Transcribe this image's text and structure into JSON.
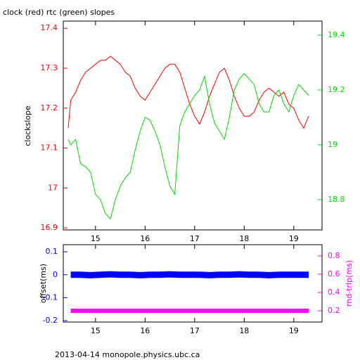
{
  "chart_data": [
    {
      "type": "line",
      "title": "clock (red) rtc (green) slopes",
      "y_label": "clockslope",
      "x": [
        14.45,
        14.5,
        14.6,
        14.7,
        14.8,
        14.9,
        15.0,
        15.1,
        15.2,
        15.3,
        15.4,
        15.5,
        15.6,
        15.7,
        15.8,
        15.9,
        16.0,
        16.1,
        16.2,
        16.3,
        16.4,
        16.5,
        16.6,
        16.7,
        16.8,
        16.9,
        17.0,
        17.1,
        17.2,
        17.3,
        17.4,
        17.5,
        17.6,
        17.7,
        17.8,
        17.9,
        18.0,
        18.1,
        18.2,
        18.3,
        18.4,
        18.5,
        18.6,
        18.7,
        18.8,
        18.9,
        19.0,
        19.1,
        19.2,
        19.3
      ],
      "series": [
        {
          "color": "#ff0000",
          "values": [
            17.15,
            17.22,
            17.24,
            17.27,
            17.29,
            17.3,
            17.31,
            17.32,
            17.32,
            17.33,
            17.32,
            17.31,
            17.29,
            17.28,
            17.25,
            17.23,
            17.22,
            17.24,
            17.26,
            17.28,
            17.3,
            17.31,
            17.31,
            17.29,
            17.25,
            17.21,
            17.18,
            17.16,
            17.19,
            17.23,
            17.26,
            17.29,
            17.3,
            17.27,
            17.23,
            17.2,
            17.18,
            17.18,
            17.19,
            17.22,
            17.24,
            17.25,
            17.24,
            17.23,
            17.24,
            17.21,
            17.2,
            17.17,
            17.15,
            17.18
          ]
        },
        {
          "color": "#00dd00",
          "axis": "y2",
          "values": [
            19.02,
            19.0,
            19.02,
            18.93,
            18.92,
            18.9,
            18.82,
            18.8,
            18.75,
            18.73,
            18.8,
            18.85,
            18.88,
            18.9,
            18.98,
            19.05,
            19.1,
            19.09,
            19.05,
            19.0,
            18.92,
            18.85,
            18.82,
            19.07,
            19.12,
            19.15,
            19.18,
            19.2,
            19.25,
            19.15,
            19.08,
            19.05,
            19.02,
            19.1,
            19.2,
            19.24,
            19.26,
            19.24,
            19.22,
            19.15,
            19.12,
            19.12,
            19.18,
            19.2,
            19.15,
            19.12,
            19.18,
            19.22,
            19.2,
            19.18
          ]
        }
      ],
      "xlim": [
        14.35,
        19.57
      ],
      "xticks": [
        15,
        16,
        17,
        18,
        19
      ],
      "ylim": [
        16.895,
        17.418
      ],
      "yticks": [
        16.9,
        17,
        17.1,
        17.2,
        17.3,
        17.4
      ],
      "y2lim": [
        18.69,
        19.451
      ],
      "y2ticks": [
        18.8,
        19,
        19.2,
        19.4
      ]
    },
    {
      "type": "line",
      "y_label": "offset(ms)",
      "y2_label": "rnd-trip(ms)",
      "x": [
        14.5,
        14.7,
        14.9,
        15.1,
        15.3,
        15.5,
        15.7,
        15.9,
        16.1,
        16.3,
        16.5,
        16.7,
        16.9,
        17.1,
        17.3,
        17.5,
        17.7,
        17.9,
        18.1,
        18.3,
        18.5,
        18.7,
        18.9,
        19.1,
        19.3
      ],
      "series": [
        {
          "color": "#0000ff",
          "values": [
            0,
            0,
            -0.002,
            0,
            0.002,
            0,
            0,
            -0.002,
            0,
            0,
            0.002,
            0,
            0,
            0,
            -0.002,
            0,
            0,
            0.002,
            0,
            0,
            -0.002,
            0,
            0,
            0,
            0
          ]
        },
        {
          "color": "#ff00ff",
          "axis": "y2",
          "values": [
            0.2,
            0.2,
            0.2,
            0.2,
            0.2,
            0.2,
            0.2,
            0.2,
            0.2,
            0.2,
            0.2,
            0.2,
            0.2,
            0.2,
            0.2,
            0.2,
            0.2,
            0.2,
            0.2,
            0.2,
            0.2,
            0.2,
            0.2,
            0.2,
            0.2
          ]
        }
      ],
      "xlim": [
        14.35,
        19.57
      ],
      "xticks": [
        15,
        16,
        17,
        18,
        19
      ],
      "ylim": [
        -0.206,
        0.131
      ],
      "yticks": [
        -0.2,
        -0.1,
        0,
        0.1
      ],
      "y2lim": [
        0.077,
        0.923
      ],
      "y2ticks": [
        0.2,
        0.4,
        0.6,
        0.8
      ]
    }
  ],
  "footer": "2013-04-14 monopole.physics.ubc.ca"
}
